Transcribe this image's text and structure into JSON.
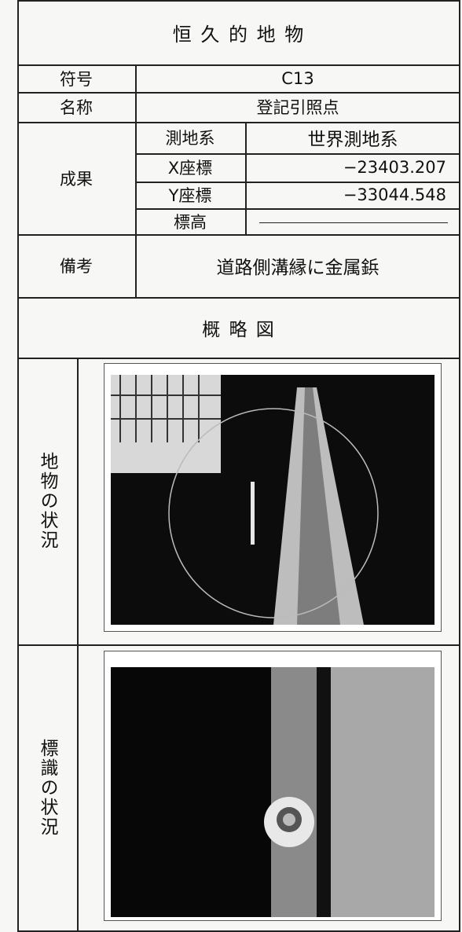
{
  "header": {
    "title": "恒 久 的 地 物"
  },
  "table": {
    "rows": [
      [
        "符号",
        "C13"
      ],
      [
        "名称",
        "登記引照点"
      ]
    ],
    "results": {
      "label": "成果",
      "rows": [
        [
          "測地系",
          "世界測地系"
        ],
        [
          "X座標",
          "−23403.207"
        ],
        [
          "Y座標",
          "−33044.548"
        ],
        [
          "標高"
        ]
      ]
    },
    "remarks": {
      "label": "備考",
      "text": "道路側溝縁に金属鋲"
    }
  },
  "sketch": {
    "title": "概 略 図"
  },
  "photos": [
    {
      "label": "地物の状況"
    },
    {
      "label": "標識の状況"
    }
  ]
}
